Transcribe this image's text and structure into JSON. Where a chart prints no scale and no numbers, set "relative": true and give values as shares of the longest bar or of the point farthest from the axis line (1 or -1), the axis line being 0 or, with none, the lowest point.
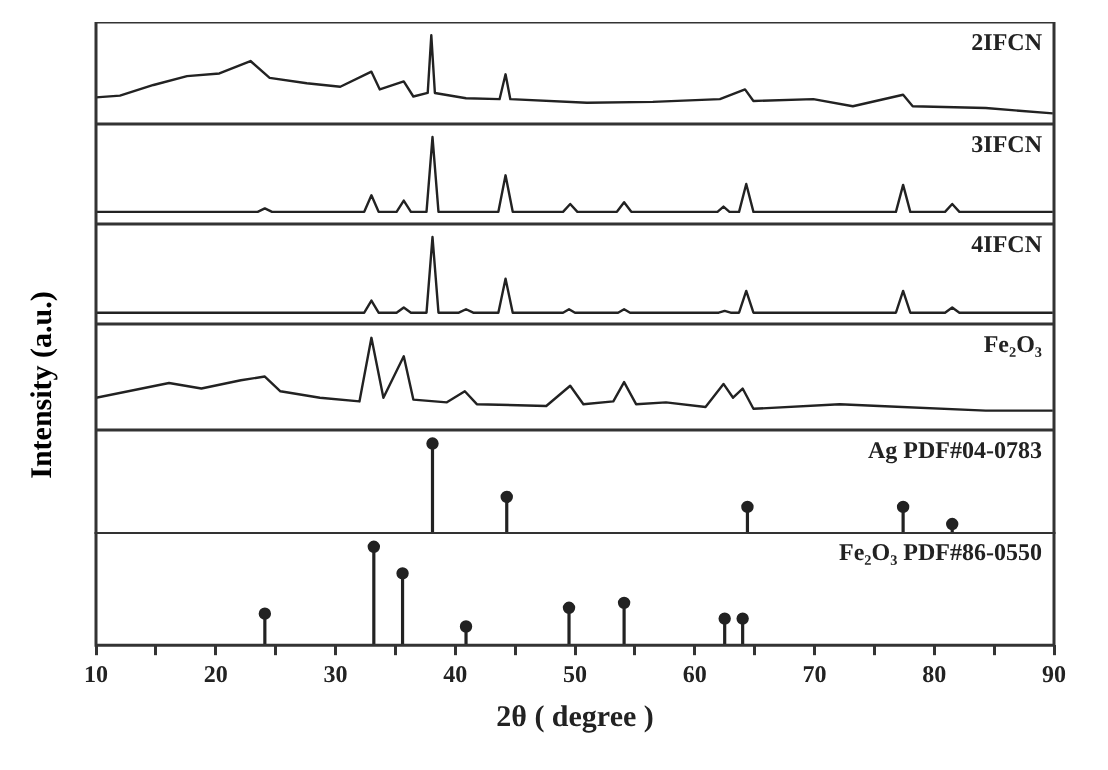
{
  "chart_data": [
    {
      "type": "line",
      "relative": true,
      "xlim": [
        10,
        90
      ],
      "tick_labels": false,
      "x": [
        10,
        12,
        14.8,
        17.6,
        20.3,
        22.9,
        24.5,
        27.6,
        30.4,
        33.0,
        33.7,
        35.7,
        36.5,
        37.7,
        38.0,
        38.3,
        40.9,
        43.7,
        44.2,
        44.6,
        51.0,
        56.5,
        62.1,
        64.2,
        64.9,
        69.9,
        73.2,
        77.4,
        78.2,
        84.3,
        89.9
      ],
      "series": [
        {
          "name": "2IFCN",
          "color": "#222222",
          "values": [
            0.3,
            0.32,
            0.44,
            0.54,
            0.57,
            0.71,
            0.52,
            0.46,
            0.42,
            0.59,
            0.39,
            0.48,
            0.31,
            0.35,
            1,
            0.35,
            0.29,
            0.28,
            0.56,
            0.28,
            0.24,
            0.25,
            0.28,
            0.39,
            0.26,
            0.28,
            0.2,
            0.33,
            0.2,
            0.18,
            0.12
          ]
        }
      ]
    },
    {
      "type": "line",
      "relative": true,
      "xlim": [
        10,
        90
      ],
      "tick_labels": false,
      "x": [
        10,
        23.5,
        24.1,
        24.7,
        32.4,
        33.0,
        33.6,
        35.1,
        35.7,
        36.3,
        37.6,
        38.1,
        38.6,
        43.6,
        44.2,
        44.8,
        49.0,
        49.6,
        50.2,
        53.5,
        54.1,
        54.7,
        61.9,
        62.4,
        62.9,
        63.7,
        64.3,
        64.9,
        76.8,
        77.4,
        78.0,
        80.9,
        81.5,
        82.1,
        89.9
      ],
      "series": [
        {
          "name": "3IFCN",
          "color": "#222222",
          "values": [
            0.14,
            0.14,
            0.18,
            0.14,
            0.14,
            0.33,
            0.14,
            0.14,
            0.27,
            0.14,
            0.14,
            1,
            0.14,
            0.14,
            0.56,
            0.14,
            0.14,
            0.23,
            0.14,
            0.14,
            0.25,
            0.14,
            0.14,
            0.2,
            0.14,
            0.14,
            0.46,
            0.14,
            0.14,
            0.45,
            0.14,
            0.14,
            0.23,
            0.14,
            0.14
          ]
        }
      ]
    },
    {
      "type": "line",
      "relative": true,
      "xlim": [
        10,
        90
      ],
      "tick_labels": false,
      "x": [
        10,
        32.4,
        33.0,
        33.6,
        35.1,
        35.7,
        36.3,
        37.6,
        38.1,
        38.6,
        40.3,
        40.9,
        41.5,
        43.6,
        44.2,
        44.8,
        49.0,
        49.5,
        50.0,
        53.6,
        54.1,
        54.6,
        62.0,
        62.5,
        63.0,
        63.7,
        64.3,
        64.9,
        76.8,
        77.4,
        78.0,
        80.9,
        81.5,
        82.1,
        89.9
      ],
      "series": [
        {
          "name": "4IFCN",
          "color": "#222222",
          "values": [
            0.13,
            0.13,
            0.27,
            0.13,
            0.13,
            0.19,
            0.13,
            0.13,
            1,
            0.13,
            0.13,
            0.17,
            0.13,
            0.13,
            0.52,
            0.13,
            0.13,
            0.17,
            0.13,
            0.13,
            0.17,
            0.13,
            0.13,
            0.15,
            0.13,
            0.13,
            0.38,
            0.13,
            0.13,
            0.38,
            0.13,
            0.13,
            0.19,
            0.13,
            0.13
          ]
        }
      ]
    },
    {
      "type": "line",
      "relative": true,
      "xlim": [
        10,
        90
      ],
      "tick_labels": false,
      "ylabel": "Intensity (a.u.)",
      "x": [
        10,
        16.1,
        18.8,
        22.1,
        24.1,
        25.4,
        28.7,
        32.0,
        33.0,
        34.0,
        35.7,
        36.5,
        39.3,
        40.8,
        41.8,
        47.6,
        49.6,
        50.7,
        53.2,
        54.1,
        55.1,
        57.6,
        60.9,
        62.4,
        63.2,
        64.0,
        64.9,
        72.1,
        75.4,
        84.3,
        89.9
      ],
      "series": [
        {
          "name": "Fe₂O₃",
          "color": "#222222",
          "values": [
            0.35,
            0.51,
            0.45,
            0.54,
            0.58,
            0.42,
            0.35,
            0.31,
            1,
            0.35,
            0.8,
            0.33,
            0.3,
            0.42,
            0.28,
            0.26,
            0.48,
            0.28,
            0.31,
            0.52,
            0.28,
            0.3,
            0.25,
            0.5,
            0.35,
            0.45,
            0.23,
            0.28,
            0.26,
            0.21,
            0.21
          ]
        }
      ]
    },
    {
      "type": "lollipop",
      "relative": true,
      "xlim": [
        10,
        90
      ],
      "tick_labels": false,
      "marker": "circle",
      "x": [
        38.1,
        44.3,
        64.4,
        77.4,
        81.5
      ],
      "series": [
        {
          "name": "Ag PDF#04-0783",
          "color": "#222222",
          "values": [
            1,
            0.41,
            0.3,
            0.3,
            0.11
          ]
        }
      ]
    },
    {
      "type": "lollipop",
      "relative": true,
      "xlim": [
        10,
        90
      ],
      "tick_labels": "x",
      "marker": "circle",
      "xlabel": "2θ ( degree )",
      "xticks": [
        10,
        {
          "value": 15,
          "label": null
        },
        20,
        {
          "value": 25,
          "label": null
        },
        30,
        {
          "value": 35,
          "label": null
        },
        40,
        {
          "value": 45,
          "label": null
        },
        50,
        {
          "value": 55,
          "label": null
        },
        60,
        {
          "value": 65,
          "label": null
        },
        70,
        {
          "value": 75,
          "label": null
        },
        80,
        {
          "value": 85,
          "label": null
        },
        90
      ],
      "x": [
        24.1,
        33.2,
        35.6,
        40.9,
        49.5,
        54.1,
        62.5,
        64.0
      ],
      "series": [
        {
          "name": "Fe₂O₃ PDF#86-0550",
          "color": "#222222",
          "values": [
            0.32,
            1,
            0.73,
            0.19,
            0.38,
            0.43,
            0.27,
            0.27
          ]
        }
      ]
    }
  ]
}
